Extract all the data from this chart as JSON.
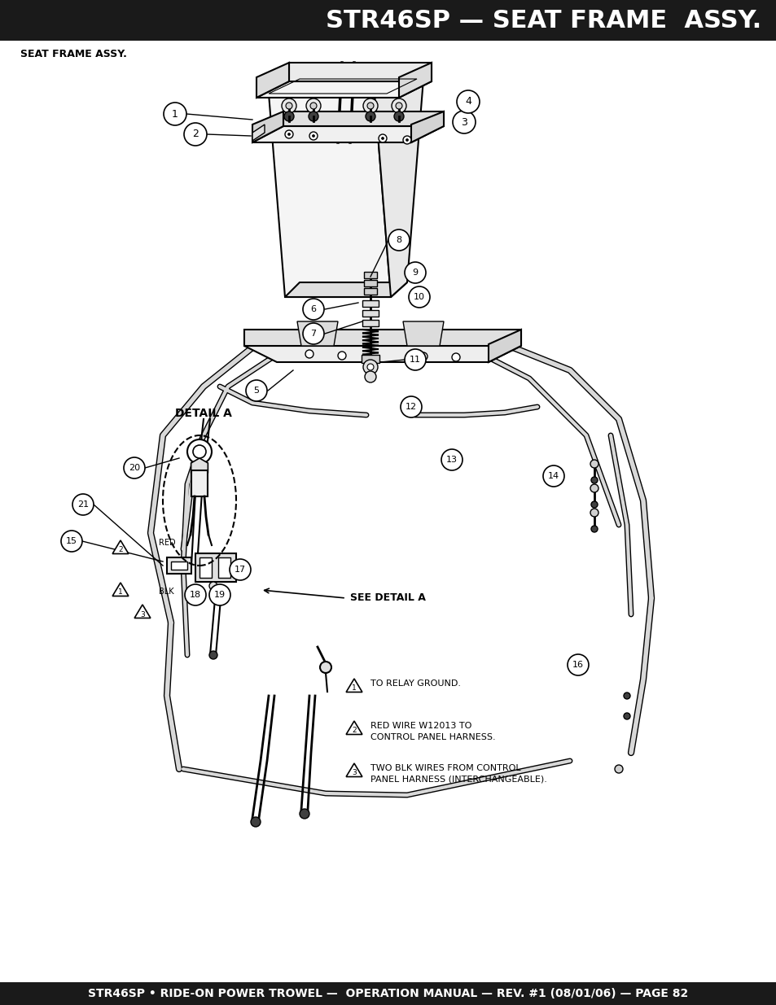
{
  "title_text": "STR46SP — SEAT FRAME  ASSY.",
  "title_bg_color": "#1a1a1a",
  "title_text_color": "#ffffff",
  "title_fontsize": 22,
  "subtitle_text": "SEAT FRAME ASSY.",
  "subtitle_fontsize": 9,
  "footer_text": "STR46SP • RIDE-ON POWER TROWEL —  OPERATION MANUAL — REV. #1 (08/01/06) — PAGE 82",
  "footer_bg_color": "#1a1a1a",
  "footer_text_color": "#ffffff",
  "footer_fontsize": 10,
  "bg_color": "#ffffff",
  "page_width": 9.54,
  "page_height": 12.35,
  "dpi": 100,
  "detail_a_label": "DETAIL A",
  "notes": [
    "TO RELAY GROUND.",
    "RED WIRE W12013 TO\nCONTROL PANEL HARNESS.",
    "TWO BLK WIRES FROM CONTROL\nPANEL HARNESS (INTERCHANGEABLE)."
  ],
  "see_detail_a_text": "SEE DETAIL A"
}
